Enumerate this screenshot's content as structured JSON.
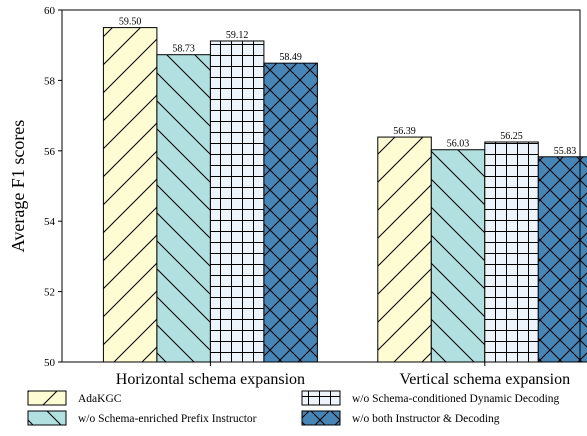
{
  "chart_data": {
    "type": "bar",
    "title": "",
    "xlabel": "",
    "ylabel": "Average F1 scores",
    "ylim": [
      50,
      60
    ],
    "yticks": [
      50,
      52,
      54,
      56,
      58,
      60
    ],
    "grid": false,
    "legend_position": "bottom",
    "categories": [
      "Horizontal schema expansion",
      "Vertical schema expansion"
    ],
    "series": [
      {
        "name": "AdaKGC",
        "values": [
          59.5,
          56.39
        ],
        "value_labels": [
          "59.50",
          "56.39"
        ],
        "color": "#fdfcd3",
        "hatch": "forward-diagonal"
      },
      {
        "name": "w/o Schema-enriched Prefix Instructor",
        "values": [
          58.73,
          56.03
        ],
        "value_labels": [
          "58.73",
          "56.03"
        ],
        "color": "#b2e0e0",
        "hatch": "back-diagonal"
      },
      {
        "name": "w/o Schema-conditioned Dynamic Decoding",
        "values": [
          59.12,
          56.25
        ],
        "value_labels": [
          "59.12",
          "56.25"
        ],
        "color": "#eef4fb",
        "hatch": "grid"
      },
      {
        "name": "w/o both Instructor & Decoding",
        "values": [
          58.49,
          55.83
        ],
        "value_labels": [
          "58.49",
          "55.83"
        ],
        "color": "#4685b6",
        "hatch": "crosshatch"
      }
    ]
  }
}
